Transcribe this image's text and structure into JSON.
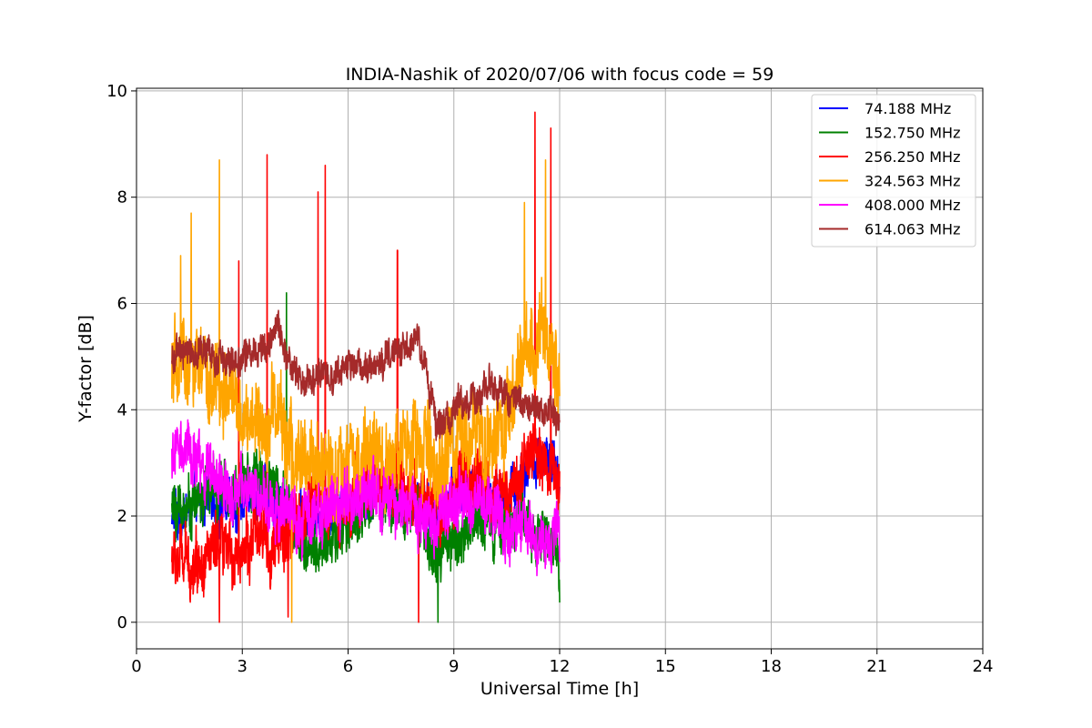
{
  "chart_data": {
    "type": "line",
    "title": "INDIA-Nashik of 2020/07/06 with focus code = 59",
    "xlabel": "Universal Time [h]",
    "ylabel": "Y-factor [dB]",
    "xlim": [
      0,
      24
    ],
    "ylim": [
      -0.5,
      10.05
    ],
    "xticks": [
      0,
      3,
      6,
      9,
      12,
      15,
      18,
      21,
      24
    ],
    "yticks": [
      0,
      2,
      4,
      6,
      8,
      10
    ],
    "grid": true,
    "legend_position": "top-right",
    "series": [
      {
        "name": " 74.188 MHz",
        "color": "#0000ff",
        "x": [
          1.0,
          1.5,
          2.0,
          2.5,
          3.0,
          3.5,
          4.0,
          4.5,
          5.0,
          5.5,
          6.0,
          6.5,
          7.0,
          7.5,
          8.0,
          8.5,
          9.0,
          9.5,
          10.0,
          10.5,
          11.0,
          11.5,
          12.0
        ],
        "y": [
          2.0,
          2.1,
          2.3,
          2.2,
          2.3,
          2.4,
          2.2,
          2.0,
          2.1,
          2.2,
          2.3,
          2.4,
          2.5,
          2.4,
          2.3,
          2.0,
          2.4,
          2.6,
          2.4,
          2.3,
          2.9,
          3.0,
          2.8
        ],
        "amp": 0.45
      },
      {
        "name": "152.750 MHz",
        "color": "#008000",
        "x": [
          1.0,
          1.5,
          2.0,
          2.5,
          3.0,
          3.5,
          4.0,
          4.5,
          5.0,
          5.5,
          6.0,
          6.5,
          7.0,
          7.5,
          8.0,
          8.5,
          9.0,
          9.5,
          10.0,
          10.5,
          11.0,
          11.5,
          12.0
        ],
        "y": [
          2.1,
          2.2,
          2.4,
          2.5,
          2.6,
          2.8,
          2.6,
          1.7,
          1.3,
          1.5,
          1.8,
          2.1,
          2.4,
          2.2,
          2.0,
          1.2,
          1.5,
          1.8,
          2.0,
          1.8,
          2.0,
          1.6,
          1.2
        ],
        "amp": 0.5
      },
      {
        "name": "256.250 MHz",
        "color": "#ff0000",
        "x": [
          1.0,
          1.5,
          2.0,
          2.5,
          3.0,
          3.5,
          4.0,
          4.5,
          5.0,
          5.5,
          6.0,
          6.5,
          7.0,
          7.5,
          8.0,
          8.5,
          9.0,
          9.5,
          10.0,
          10.5,
          11.0,
          11.5,
          12.0
        ],
        "y": [
          1.2,
          1.1,
          1.3,
          1.2,
          1.4,
          1.6,
          1.4,
          1.8,
          2.4,
          2.2,
          2.3,
          2.6,
          2.8,
          2.6,
          2.4,
          2.0,
          2.4,
          2.6,
          2.5,
          2.4,
          3.0,
          3.2,
          2.6
        ],
        "amp": 0.6
      },
      {
        "name": "324.563 MHz",
        "color": "#ffa500",
        "x": [
          1.0,
          1.5,
          2.0,
          2.5,
          3.0,
          3.5,
          4.0,
          4.5,
          5.0,
          5.5,
          6.0,
          6.5,
          7.0,
          7.5,
          8.0,
          8.5,
          9.0,
          9.5,
          10.0,
          10.5,
          11.0,
          11.5,
          12.0
        ],
        "y": [
          4.6,
          4.9,
          4.5,
          4.3,
          3.9,
          3.7,
          4.0,
          3.0,
          2.9,
          3.0,
          2.8,
          3.0,
          3.2,
          3.1,
          3.3,
          2.9,
          3.2,
          3.6,
          3.6,
          3.5,
          5.0,
          5.4,
          4.6
        ],
        "amp": 0.8
      },
      {
        "name": "408.000 MHz",
        "color": "#ff00ff",
        "x": [
          1.0,
          1.5,
          2.0,
          2.5,
          3.0,
          3.5,
          4.0,
          4.5,
          5.0,
          5.5,
          6.0,
          6.5,
          7.0,
          7.5,
          8.0,
          8.5,
          9.0,
          9.5,
          10.0,
          10.5,
          11.0,
          11.5,
          12.0
        ],
        "y": [
          3.2,
          3.1,
          2.9,
          2.6,
          2.4,
          2.3,
          2.2,
          1.9,
          2.0,
          2.2,
          2.3,
          2.4,
          2.3,
          2.2,
          2.1,
          2.0,
          2.2,
          2.3,
          2.2,
          1.8,
          1.7,
          1.8,
          1.6
        ],
        "amp": 0.55
      },
      {
        "name": "614.063 MHz",
        "color": "#a52a2a",
        "x": [
          1.0,
          1.5,
          2.0,
          2.5,
          3.0,
          3.5,
          4.0,
          4.5,
          5.0,
          5.5,
          6.0,
          6.5,
          7.0,
          7.5,
          8.0,
          8.5,
          9.0,
          9.5,
          10.0,
          10.5,
          11.0,
          11.5,
          12.0
        ],
        "y": [
          5.0,
          5.1,
          5.0,
          4.9,
          5.0,
          5.2,
          5.5,
          4.6,
          4.6,
          4.7,
          4.8,
          4.9,
          4.9,
          5.0,
          5.3,
          3.8,
          3.9,
          4.2,
          4.4,
          4.3,
          4.1,
          4.0,
          3.8
        ],
        "amp": 0.3
      }
    ],
    "spikes": [
      {
        "series": 3,
        "x": 1.55,
        "y": 7.7
      },
      {
        "series": 3,
        "x": 2.35,
        "y": 8.7
      },
      {
        "series": 3,
        "x": 1.25,
        "y": 6.9
      },
      {
        "series": 2,
        "x": 3.7,
        "y": 8.8
      },
      {
        "series": 2,
        "x": 5.35,
        "y": 8.6
      },
      {
        "series": 2,
        "x": 5.15,
        "y": 8.1
      },
      {
        "series": 2,
        "x": 7.4,
        "y": 7.0
      },
      {
        "series": 2,
        "x": 11.3,
        "y": 9.6
      },
      {
        "series": 2,
        "x": 11.75,
        "y": 9.3
      },
      {
        "series": 3,
        "x": 11.6,
        "y": 8.7
      },
      {
        "series": 3,
        "x": 11.0,
        "y": 7.9
      },
      {
        "series": 2,
        "x": 2.9,
        "y": 6.8
      },
      {
        "series": 1,
        "x": 4.25,
        "y": 6.2
      },
      {
        "series": 2,
        "x": 4.3,
        "y": 0.1
      },
      {
        "series": 2,
        "x": 2.35,
        "y": 0.0
      },
      {
        "series": 2,
        "x": 8.0,
        "y": 0.0
      },
      {
        "series": 1,
        "x": 8.55,
        "y": 0.0
      },
      {
        "series": 3,
        "x": 4.4,
        "y": 0.0
      }
    ]
  }
}
